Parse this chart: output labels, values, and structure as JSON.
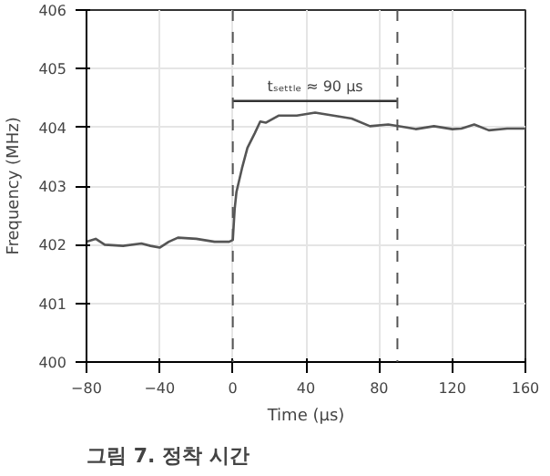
{
  "chart_data": {
    "type": "line",
    "title": "그림 7. 정착 시간",
    "xlabel": "Time (μs)",
    "ylabel": "Frequency (MHz)",
    "x": [
      -80,
      -75,
      -70,
      -60,
      -50,
      -45,
      -40,
      -35,
      -30,
      -20,
      -10,
      -2,
      0,
      1,
      2,
      5,
      8,
      12,
      15,
      18,
      25,
      35,
      45,
      55,
      65,
      75,
      85,
      95,
      100,
      110,
      120,
      125,
      132,
      140,
      150,
      160
    ],
    "series": [
      {
        "color": "#555555",
        "values": [
          402.05,
          402.1,
          402.0,
          401.98,
          402.02,
          401.98,
          401.95,
          402.05,
          402.12,
          402.1,
          402.05,
          402.05,
          402.08,
          402.6,
          402.9,
          403.3,
          403.65,
          403.9,
          404.1,
          404.08,
          404.2,
          404.2,
          404.25,
          404.2,
          404.15,
          404.02,
          404.05,
          404.0,
          403.97,
          404.02,
          403.97,
          403.98,
          404.05,
          403.95,
          403.98,
          403.98
        ]
      },
      {
        "color": "#333333",
        "x": [
          0,
          90
        ],
        "values": [
          404.45,
          404.45
        ]
      }
    ],
    "xlim": [
      -80,
      160
    ],
    "ylim": [
      400,
      406
    ],
    "xticks": [
      {
        "value": -80,
        "label": "−80"
      },
      {
        "value": -40,
        "label": "−40"
      },
      0,
      40,
      80,
      120,
      160
    ],
    "yticks": [
      400,
      401,
      402,
      403,
      404,
      405,
      406
    ],
    "grid": true,
    "line_style": "solid",
    "marker": "none",
    "ref_lines": [
      {
        "axis": "x",
        "value": 0,
        "label": null,
        "line_style": "dashed",
        "color": "#555555"
      },
      {
        "axis": "x",
        "value": 90,
        "label": null,
        "line_style": "dashed",
        "color": "#555555"
      }
    ],
    "annotations": [
      {
        "text": "tₛₑₜₜₗₑ ≈ 90 μs",
        "x": 45,
        "y": 404.55
      }
    ]
  }
}
